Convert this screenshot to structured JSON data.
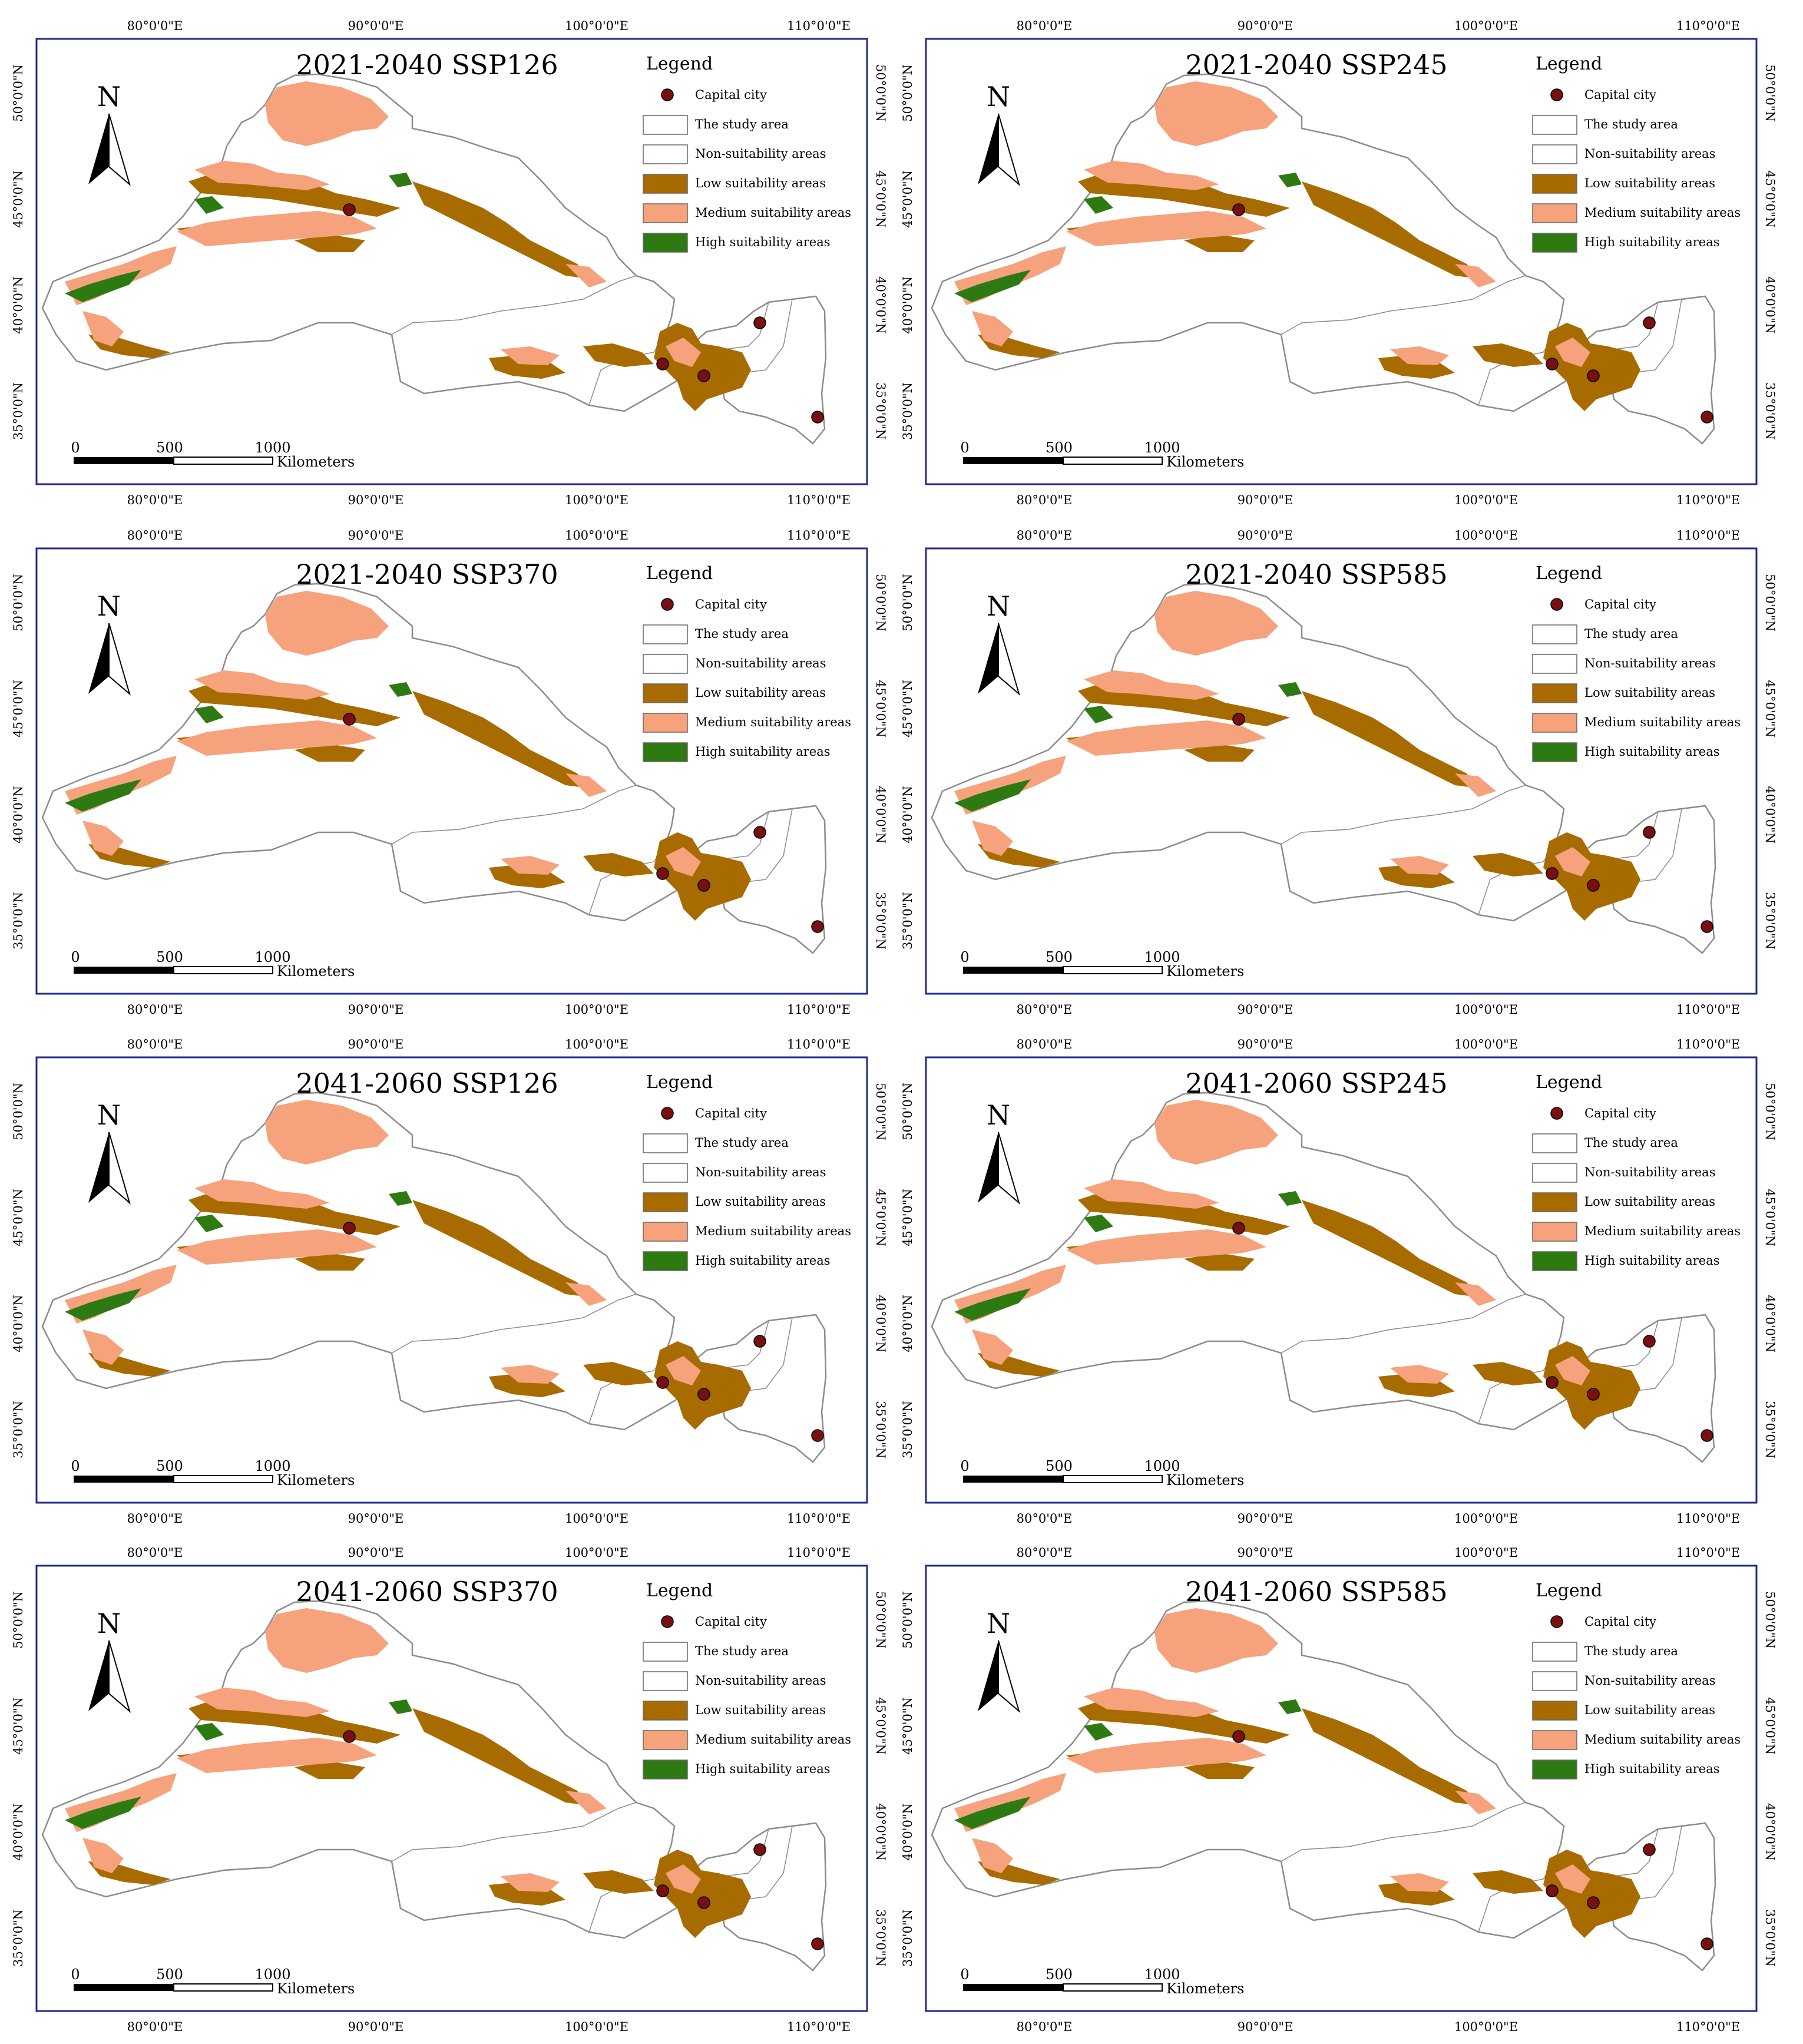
{
  "figure": {
    "panels": [
      {
        "title": "2021-2040  SSP126",
        "period": "2021-2040",
        "scenario": "SSP126"
      },
      {
        "title": "2021-2040  SSP245",
        "period": "2021-2040",
        "scenario": "SSP245"
      },
      {
        "title": "2021-2040  SSP370",
        "period": "2021-2040",
        "scenario": "SSP370"
      },
      {
        "title": "2021-2040  SSP585",
        "period": "2021-2040",
        "scenario": "SSP585"
      },
      {
        "title": "2041-2060  SSP126",
        "period": "2041-2060",
        "scenario": "SSP126"
      },
      {
        "title": "2041-2060  SSP245",
        "period": "2041-2060",
        "scenario": "SSP245"
      },
      {
        "title": "2041-2060  SSP370",
        "period": "2041-2060",
        "scenario": "SSP370"
      },
      {
        "title": "2041-2060  SSP585",
        "period": "2041-2060",
        "scenario": "SSP585"
      }
    ],
    "legend": {
      "title": "Legend",
      "items": [
        {
          "label": "Capital city",
          "symbol": "dot",
          "color": "#7a0f12"
        },
        {
          "label": "The study area",
          "symbol": "box",
          "color": "#ffffff"
        },
        {
          "label": "Non-suitability areas",
          "symbol": "box",
          "color": "#ffffff"
        },
        {
          "label": "Low suitability areas",
          "symbol": "box",
          "color": "#a86b00"
        },
        {
          "label": "Medium suitability areas",
          "symbol": "box",
          "color": "#f6a27c"
        },
        {
          "label": "High suitability areas",
          "symbol": "box",
          "color": "#2e7a12"
        }
      ]
    },
    "x_ticks": [
      "80°0'0\"E",
      "90°0'0\"E",
      "100°0'0\"E",
      "110°0'0\"E"
    ],
    "y_ticks": [
      "50°0'0\"N",
      "45°0'0\"N",
      "40°0'0\"N",
      "35°0'0\"N"
    ],
    "north_arrow": "N",
    "scale_bar": {
      "ticks": [
        "0",
        "500",
        "1000"
      ],
      "unit": "Kilometers"
    },
    "colors": {
      "frame": "#1f2a8a",
      "boundary": "#8c8c8c",
      "low": "#a86b00",
      "medium": "#f6a27c",
      "high": "#2e7a12",
      "capital": "#7a0f12"
    }
  }
}
